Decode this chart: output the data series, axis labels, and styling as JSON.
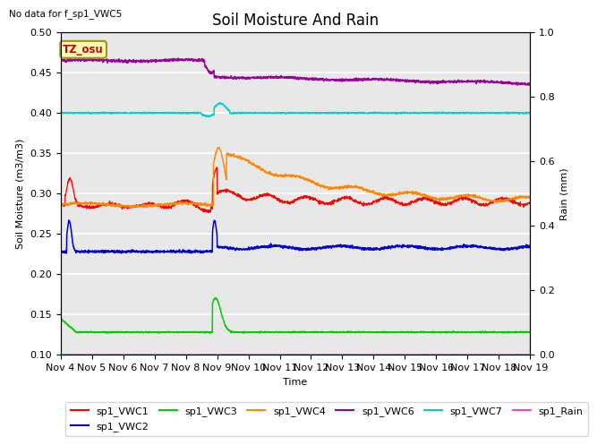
{
  "title": "Soil Moisture And Rain",
  "no_data_text": "No data for f_sp1_VWC5",
  "ylabel_left": "Soil Moisture (m3/m3)",
  "ylabel_right": "Rain (mm)",
  "xlabel": "Time",
  "xlim": [
    0,
    15
  ],
  "ylim_left": [
    0.1,
    0.5
  ],
  "ylim_right": [
    0.0,
    1.0
  ],
  "xtick_labels": [
    "Nov 4",
    "Nov 5",
    "Nov 6",
    "Nov 7",
    "Nov 8",
    "Nov 9",
    "Nov 10",
    "Nov 11",
    "Nov 12",
    "Nov 13",
    "Nov 14",
    "Nov 15",
    "Nov 16",
    "Nov 17",
    "Nov 18",
    "Nov 19"
  ],
  "ytick_left": [
    0.1,
    0.15,
    0.2,
    0.25,
    0.3,
    0.35,
    0.4,
    0.45,
    0.5
  ],
  "ytick_right": [
    0.0,
    0.2,
    0.4,
    0.6,
    0.8,
    1.0
  ],
  "legend_labels": [
    "sp1_VWC1",
    "sp1_VWC2",
    "sp1_VWC3",
    "sp1_VWC4",
    "sp1_VWC6",
    "sp1_VWC7",
    "sp1_Rain"
  ],
  "legend_colors": [
    "#ff0000",
    "#0000cc",
    "#00cc00",
    "#ff8800",
    "#990099",
    "#00cccc",
    "#ff44cc"
  ],
  "annotation_text": "TZ_osu",
  "annotation_bbox_facecolor": "#ffffbb",
  "annotation_bbox_edgecolor": "#999900",
  "background_color": "#e8e8e8",
  "grid_color": "#ffffff",
  "title_fontsize": 12,
  "label_fontsize": 8,
  "tick_fontsize": 8
}
